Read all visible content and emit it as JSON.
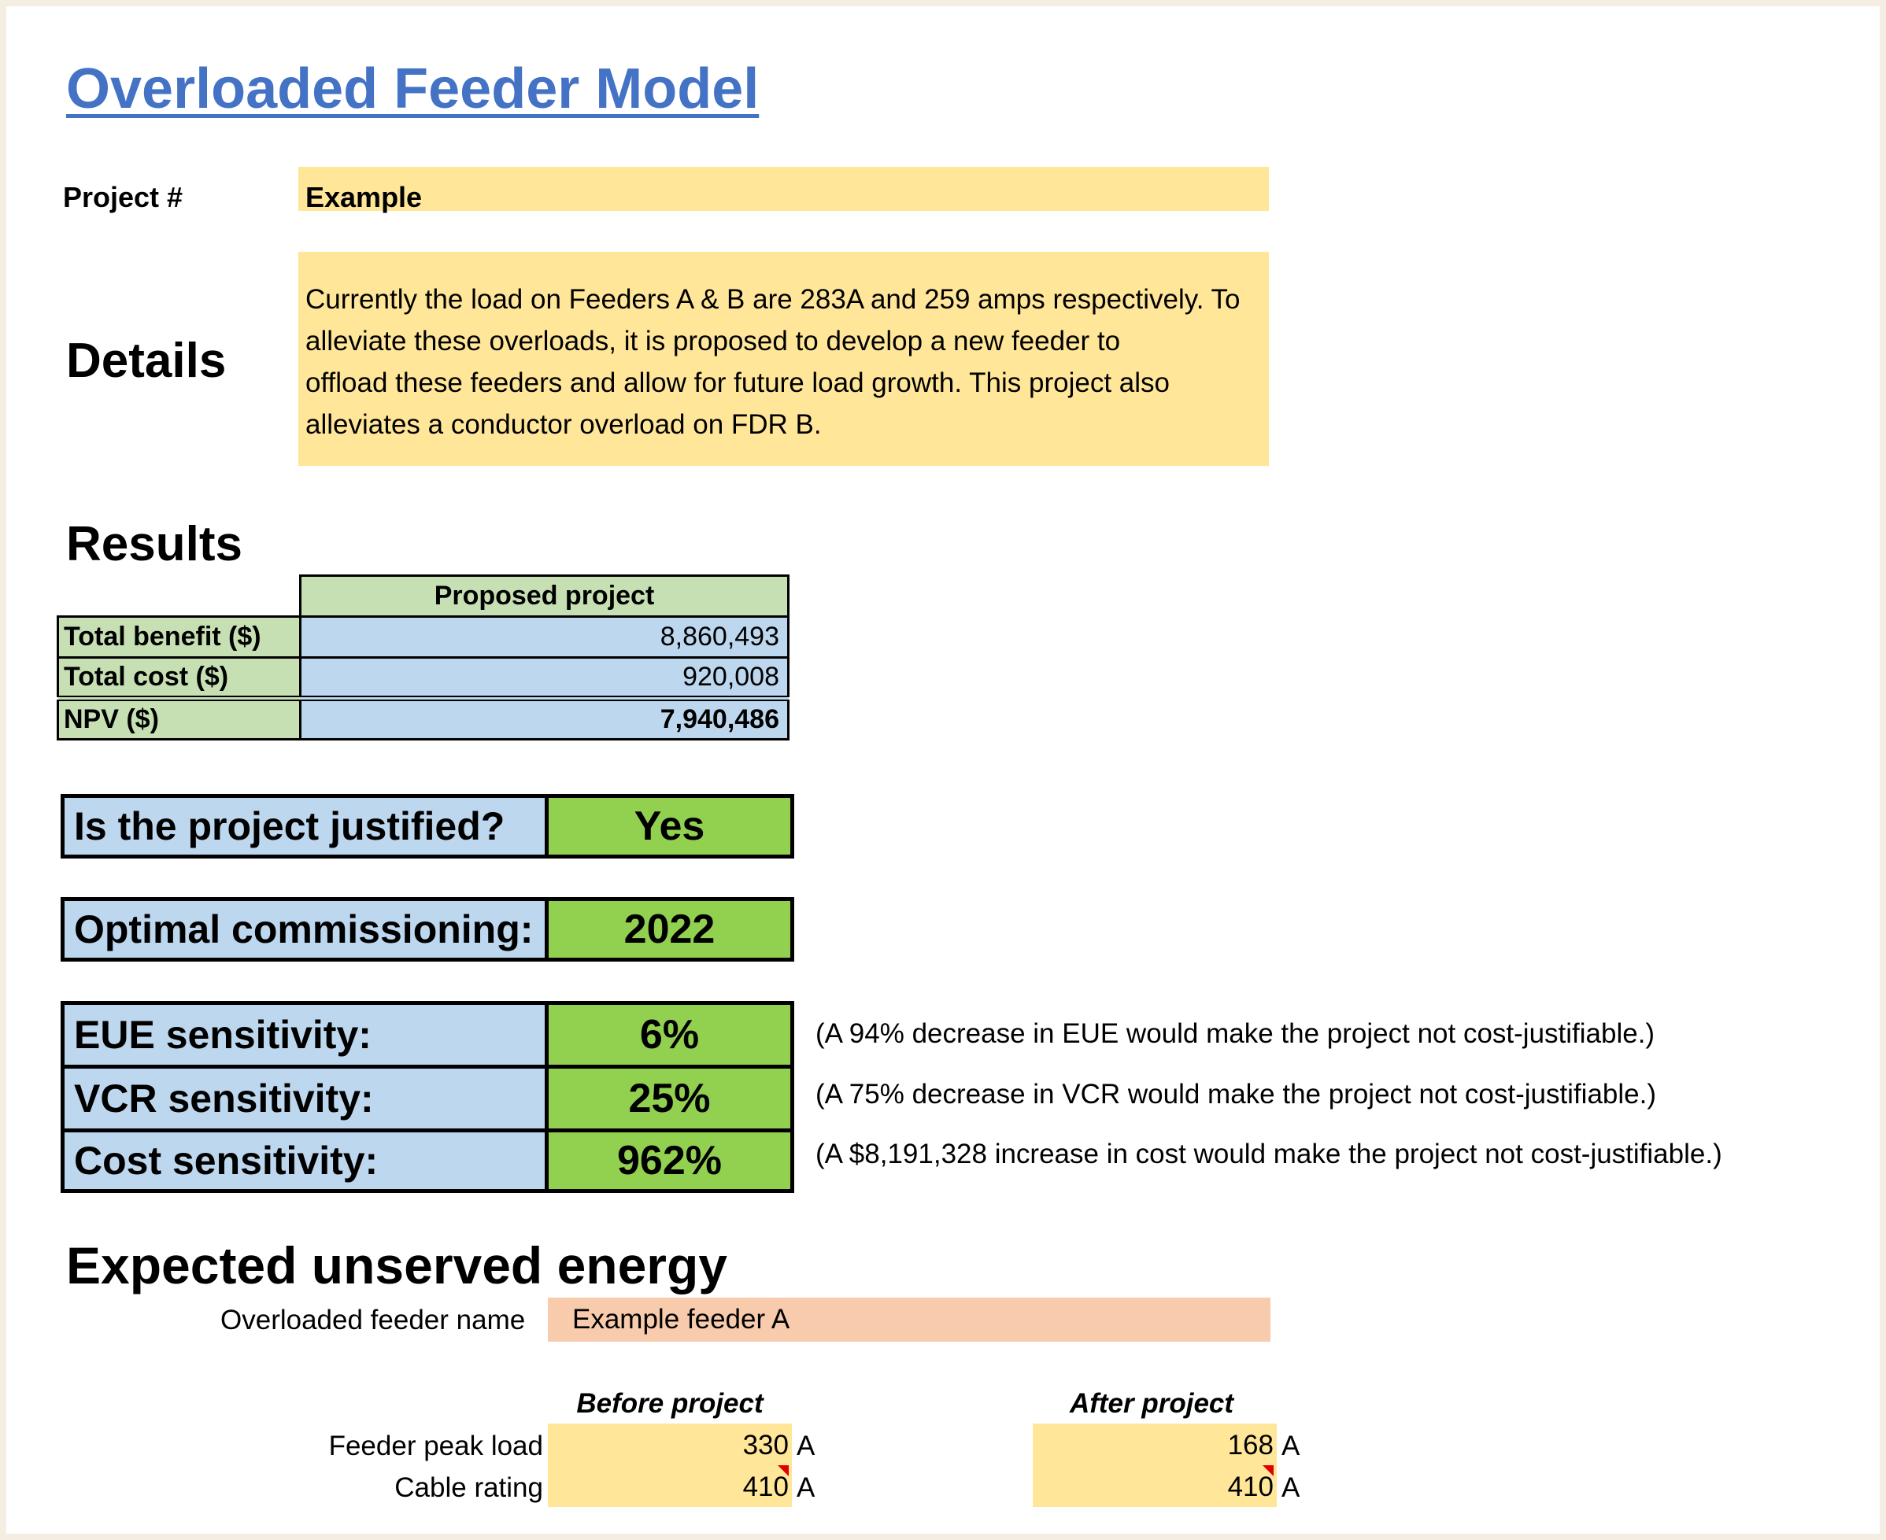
{
  "title": "Overloaded Feeder Model",
  "project": {
    "label": "Project #",
    "value": "Example"
  },
  "details": {
    "label": "Details",
    "lines": [
      "Currently the load on Feeders A & B are 283A and 259 amps respectively. To",
      "alleviate these overloads, it is proposed to develop a new feeder to",
      "offload these feeders and allow for future load growth. This project also",
      "alleviates a conductor overload on FDR B."
    ]
  },
  "results": {
    "heading": "Results",
    "column_header": "Proposed project",
    "rows": [
      {
        "label": "Total benefit ($)",
        "value": "8,860,493"
      },
      {
        "label": "Total cost ($)",
        "value": "920,008"
      },
      {
        "label": "NPV ($)",
        "value": "7,940,486"
      }
    ]
  },
  "justified": {
    "label": "Is the project justified?",
    "value": "Yes"
  },
  "commissioning": {
    "label": "Optimal commissioning:",
    "value": "2022"
  },
  "sensitivity": [
    {
      "label": "EUE sensitivity:",
      "value": "6%",
      "note": "(A 94% decrease in EUE would make the project not cost-justifiable.)"
    },
    {
      "label": "VCR sensitivity:",
      "value": "25%",
      "note": "(A 75% decrease in VCR would make the project not cost-justifiable.)"
    },
    {
      "label": "Cost sensitivity:",
      "value": "962%",
      "note": "(A $8,191,328 increase in cost would make the project not cost-justifiable.)"
    }
  ],
  "eue": {
    "heading": "Expected unserved energy",
    "feeder_label": "Overloaded feeder name",
    "feeder_value": "Example feeder A",
    "before_header": "Before project",
    "after_header": "After project",
    "rows": [
      {
        "label": "Feeder peak load",
        "before": "330",
        "after": "168",
        "unit": "A"
      },
      {
        "label": "Cable rating",
        "before": "410",
        "after": "410",
        "unit": "A"
      }
    ]
  }
}
